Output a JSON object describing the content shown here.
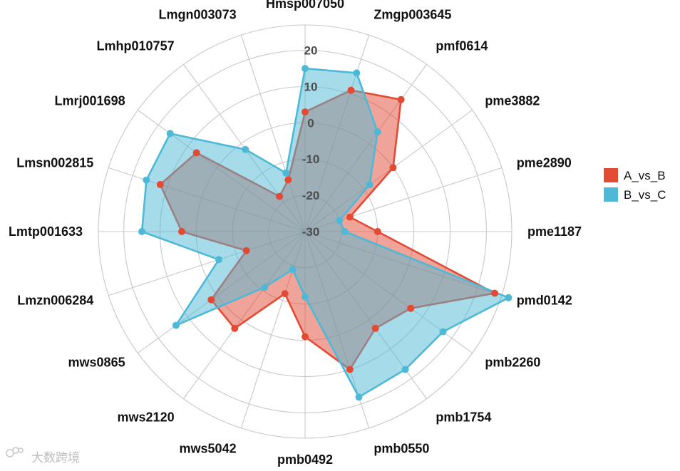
{
  "chart_data": {
    "type": "radar",
    "categories": [
      "Hmsp007050",
      "Zmgp003645",
      "pmf0614",
      "pme3882",
      "pme2890",
      "pme1187",
      "pmd0142",
      "pmb2260",
      "pmb1754",
      "pmb0550",
      "pmb0492",
      "mws5042",
      "mws2120",
      "mws0865",
      "Lmzn006284",
      "Lmtp001633",
      "Lmsn002815",
      "Lmrj001698",
      "Lmhp010757",
      "Lmgn003073"
    ],
    "rlim": [
      -30,
      27
    ],
    "ticks": [
      20,
      10,
      0,
      -10,
      -20,
      -30
    ],
    "grid": true,
    "legend_position": "right",
    "series": [
      {
        "name": "A_vs_B",
        "color": "#E24A33",
        "values": [
          3,
          11,
          15,
          0,
          -17,
          -10,
          25,
          6,
          3,
          10,
          -1,
          -12,
          3,
          2,
          -13,
          4,
          12,
          7,
          -18,
          -15
        ]
      },
      {
        "name": "B_vs_C",
        "color": "#4EB9D6",
        "values": [
          15,
          16,
          4,
          -8,
          -20,
          -19,
          29,
          17,
          17,
          18,
          -12,
          -19,
          -11,
          14,
          -5,
          15,
          16,
          16,
          -2,
          -13
        ]
      }
    ]
  },
  "watermark": {
    "text": "大数跨境"
  }
}
